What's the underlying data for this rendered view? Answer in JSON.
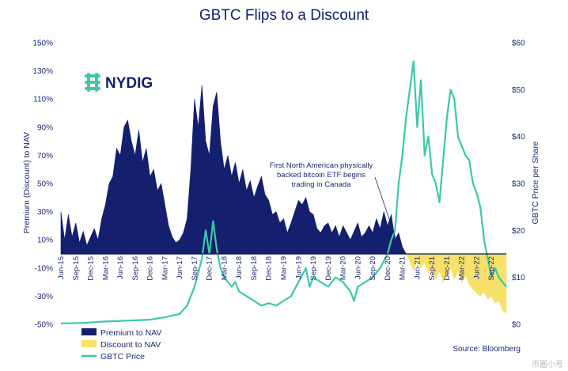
{
  "chart_data": {
    "type": "area",
    "title": "GBTC Flips to a Discount",
    "ylabel_left": "Premium (Discount) to NAV",
    "ylabel_right": "GBTC Price per Share",
    "y_left_ticks": [
      "150%",
      "130%",
      "110%",
      "90%",
      "70%",
      "50%",
      "30%",
      "10%",
      "-10%",
      "-30%",
      "-50%"
    ],
    "y_right_ticks": [
      "$60",
      "$50",
      "$40",
      "$30",
      "$20",
      "$10",
      "$0"
    ],
    "ylim_left": [
      -50,
      150
    ],
    "ylim_right": [
      0,
      60
    ],
    "x_ticks": [
      "Jun-15",
      "Sep-15",
      "Dec-15",
      "Mar-16",
      "Jun-16",
      "Sep-16",
      "Dec-16",
      "Mar-17",
      "Jun-17",
      "Sep-17",
      "Dec-17",
      "Mar-18",
      "Jun-18",
      "Sep-18",
      "Dec-18",
      "Mar-19",
      "Jun-19",
      "Sep-19",
      "Dec-19",
      "Mar-20",
      "Jun-20",
      "Sep-20",
      "Dec-20",
      "Mar-21",
      "Jun-21",
      "Sep-21",
      "Dec-21",
      "Mar-22",
      "Jun-22",
      "Sep-22"
    ],
    "x_range": [
      "Jun-15",
      "Nov-22"
    ],
    "series": [
      {
        "name": "Premium to NAV",
        "color": "#141f6e",
        "points": [
          [
            0,
            30
          ],
          [
            0.5,
            10
          ],
          [
            1,
            28
          ],
          [
            1.5,
            12
          ],
          [
            2,
            22
          ],
          [
            2.5,
            8
          ],
          [
            3,
            16
          ],
          [
            3.5,
            6
          ],
          [
            4,
            12
          ],
          [
            4.5,
            18
          ],
          [
            5,
            10
          ],
          [
            5.5,
            25
          ],
          [
            6,
            35
          ],
          [
            6.5,
            50
          ],
          [
            7,
            55
          ],
          [
            7.5,
            75
          ],
          [
            8,
            70
          ],
          [
            8.5,
            90
          ],
          [
            9,
            95
          ],
          [
            9.5,
            80
          ],
          [
            10,
            70
          ],
          [
            10.5,
            88
          ],
          [
            11,
            65
          ],
          [
            11.5,
            75
          ],
          [
            12,
            55
          ],
          [
            12.5,
            60
          ],
          [
            13,
            45
          ],
          [
            13.5,
            50
          ],
          [
            14,
            35
          ],
          [
            14.5,
            20
          ],
          [
            15,
            12
          ],
          [
            15.5,
            8
          ],
          [
            16,
            10
          ],
          [
            16.5,
            15
          ],
          [
            17,
            25
          ],
          [
            17.5,
            60
          ],
          [
            18,
            110
          ],
          [
            18.5,
            90
          ],
          [
            19,
            120
          ],
          [
            19.5,
            80
          ],
          [
            20,
            70
          ],
          [
            20.5,
            105
          ],
          [
            21,
            115
          ],
          [
            21.5,
            80
          ],
          [
            22,
            60
          ],
          [
            22.5,
            70
          ],
          [
            23,
            55
          ],
          [
            23.5,
            65
          ],
          [
            24,
            50
          ],
          [
            24.5,
            60
          ],
          [
            25,
            45
          ],
          [
            25.5,
            52
          ],
          [
            26,
            40
          ],
          [
            26.5,
            48
          ],
          [
            27,
            55
          ],
          [
            27.5,
            42
          ],
          [
            28,
            38
          ],
          [
            28.5,
            28
          ],
          [
            29,
            30
          ],
          [
            29.5,
            22
          ],
          [
            30,
            25
          ],
          [
            30.5,
            15
          ],
          [
            31,
            22
          ],
          [
            31.5,
            30
          ],
          [
            32,
            38
          ],
          [
            32.5,
            35
          ],
          [
            33,
            40
          ],
          [
            33.5,
            30
          ],
          [
            34,
            28
          ],
          [
            34.5,
            18
          ],
          [
            35,
            15
          ],
          [
            35.5,
            20
          ],
          [
            36,
            22
          ],
          [
            36.5,
            15
          ],
          [
            37,
            20
          ],
          [
            37.5,
            12
          ],
          [
            38,
            20
          ],
          [
            38.5,
            15
          ],
          [
            39,
            10
          ],
          [
            39.5,
            16
          ],
          [
            40,
            22
          ],
          [
            40.5,
            12
          ],
          [
            41,
            15
          ],
          [
            41.5,
            20
          ],
          [
            42,
            15
          ],
          [
            42.5,
            25
          ],
          [
            43,
            18
          ],
          [
            43.5,
            30
          ],
          [
            44,
            20
          ],
          [
            44.5,
            28
          ],
          [
            45,
            10
          ],
          [
            45.5,
            15
          ],
          [
            46,
            5
          ],
          [
            46.5,
            0
          ]
        ]
      },
      {
        "name": "Discount to NAV",
        "color": "#f7e16b",
        "points": [
          [
            46.5,
            0
          ],
          [
            47,
            -5
          ],
          [
            47.5,
            -12
          ],
          [
            48,
            -4
          ],
          [
            48.5,
            -10
          ],
          [
            49,
            -6
          ],
          [
            49.5,
            -14
          ],
          [
            50,
            -10
          ],
          [
            50.5,
            -18
          ],
          [
            51,
            -12
          ],
          [
            51.5,
            -20
          ],
          [
            52,
            -15
          ],
          [
            52.5,
            -10
          ],
          [
            53,
            -18
          ],
          [
            53.5,
            -12
          ],
          [
            54,
            -20
          ],
          [
            54.5,
            -15
          ],
          [
            55,
            -22
          ],
          [
            55.5,
            -25
          ],
          [
            56,
            -28
          ],
          [
            56.5,
            -30
          ],
          [
            57,
            -27
          ],
          [
            57.5,
            -32
          ],
          [
            58,
            -30
          ],
          [
            58.5,
            -35
          ],
          [
            59,
            -33
          ],
          [
            59.5,
            -40
          ],
          [
            60,
            -42
          ]
        ]
      },
      {
        "name": "GBTC Price",
        "color": "#3cc8a9",
        "points": [
          [
            0,
            0.2
          ],
          [
            3,
            0.3
          ],
          [
            6,
            0.6
          ],
          [
            9,
            0.8
          ],
          [
            12,
            1.0
          ],
          [
            14,
            1.5
          ],
          [
            16,
            2.2
          ],
          [
            17,
            4
          ],
          [
            18,
            8
          ],
          [
            19,
            14
          ],
          [
            19.5,
            20
          ],
          [
            20,
            15
          ],
          [
            20.5,
            22
          ],
          [
            21,
            16
          ],
          [
            21.5,
            12
          ],
          [
            22,
            10
          ],
          [
            22.5,
            9
          ],
          [
            23,
            8
          ],
          [
            23.5,
            9
          ],
          [
            24,
            7
          ],
          [
            25,
            6
          ],
          [
            26,
            5
          ],
          [
            27,
            4
          ],
          [
            28,
            4.5
          ],
          [
            29,
            4
          ],
          [
            30,
            5
          ],
          [
            31,
            6
          ],
          [
            32,
            9
          ],
          [
            33,
            12
          ],
          [
            33.5,
            8
          ],
          [
            34,
            10
          ],
          [
            35,
            9
          ],
          [
            36,
            8
          ],
          [
            37,
            10
          ],
          [
            38,
            9
          ],
          [
            39,
            7
          ],
          [
            39.5,
            5
          ],
          [
            40,
            8
          ],
          [
            41,
            9
          ],
          [
            42,
            10
          ],
          [
            43,
            12
          ],
          [
            44,
            15
          ],
          [
            44.5,
            18
          ],
          [
            45,
            20
          ],
          [
            45.5,
            30
          ],
          [
            46,
            36
          ],
          [
            46.5,
            44
          ],
          [
            47,
            50
          ],
          [
            47.5,
            56
          ],
          [
            48,
            42
          ],
          [
            48.5,
            52
          ],
          [
            49,
            36
          ],
          [
            49.5,
            40
          ],
          [
            50,
            32
          ],
          [
            50.5,
            30
          ],
          [
            51,
            26
          ],
          [
            51.5,
            35
          ],
          [
            52,
            44
          ],
          [
            52.5,
            50
          ],
          [
            53,
            48
          ],
          [
            53.5,
            40
          ],
          [
            54,
            38
          ],
          [
            54.5,
            36
          ],
          [
            55,
            35
          ],
          [
            55.5,
            30
          ],
          [
            56,
            28
          ],
          [
            56.5,
            25
          ],
          [
            57,
            18
          ],
          [
            57.5,
            14
          ],
          [
            58,
            10
          ],
          [
            58.5,
            12
          ],
          [
            59,
            10
          ],
          [
            59.5,
            9
          ],
          [
            60,
            8
          ]
        ]
      }
    ],
    "annotation": [
      "First North American physically",
      "backed bitcoin ETF begins",
      "trading in Canada"
    ],
    "legend": [
      {
        "label": "Premium to NAV",
        "color": "#141f6e",
        "kind": "box"
      },
      {
        "label": "Discount to NAV",
        "color": "#f7e16b",
        "kind": "box"
      },
      {
        "label": "GBTC Price",
        "color": "#3cc8a9",
        "kind": "line"
      }
    ],
    "source": "Source: Bloomberg",
    "logo": "NYDIG"
  },
  "watermark": "币圈小号"
}
